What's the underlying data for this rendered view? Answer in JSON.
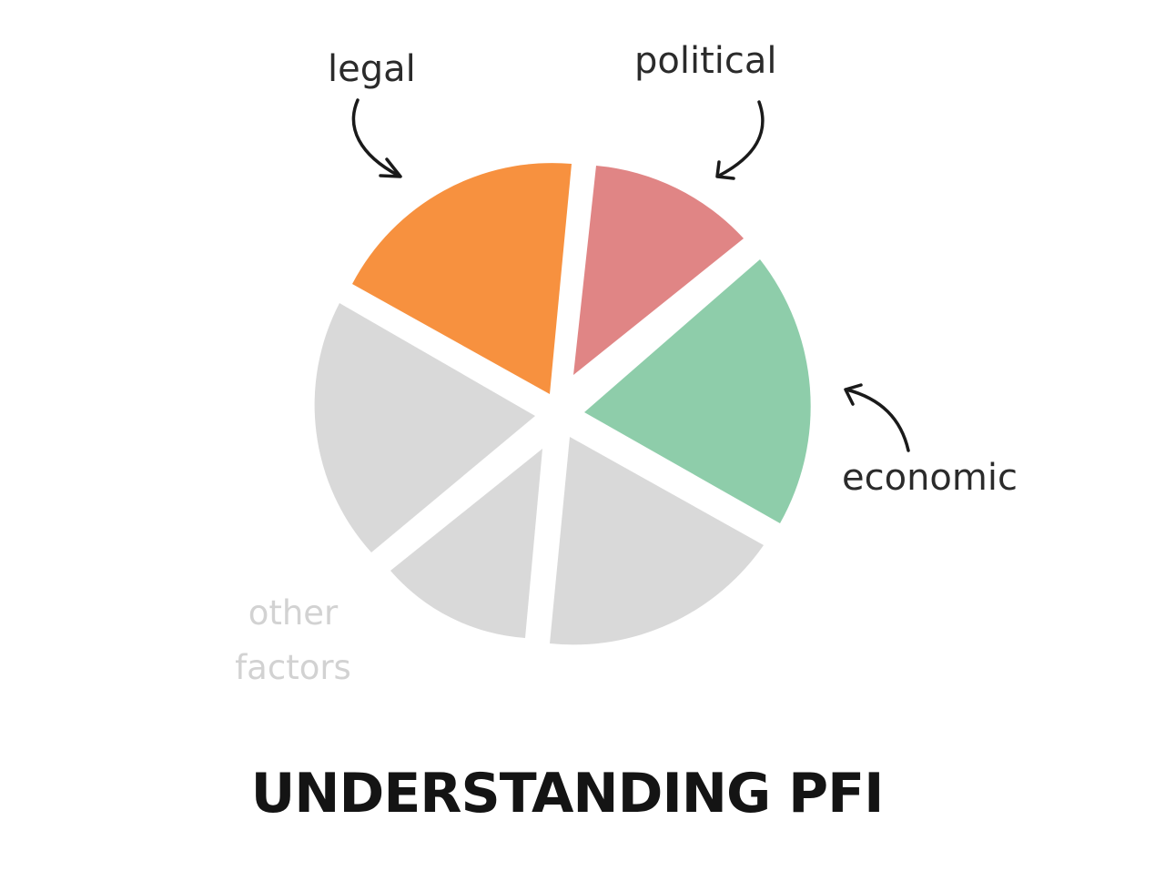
{
  "title": "UNDERSTANDING PFI",
  "labels": {
    "legal": "legal",
    "political": "political",
    "economic": "economic",
    "other_line1": "other",
    "other_line2": "factors"
  },
  "colors": {
    "legal": "#f7913f",
    "political": "#e08585",
    "economic": "#8ecdaa",
    "other": "#d9d9d9",
    "other_label": "#d2d2d2",
    "title": "#141414",
    "label": "#2b2b2b",
    "arrow": "#1a1a1a"
  }
}
